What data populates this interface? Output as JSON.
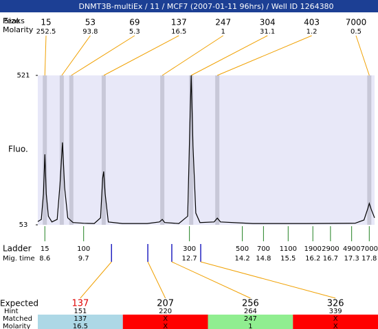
{
  "header": {
    "title": "DNMT3B-multiEx / 11 / MCF7 (2007-01-11 96hrs) / Well ID 1264380"
  },
  "chart_data": {
    "type": "line",
    "ylabel": "Fluo.",
    "color": "#000000",
    "band_color": "#c8c8d8",
    "background": "#e8e8f8",
    "x": [
      8.4,
      8.5,
      8.56,
      8.6,
      8.64,
      8.7,
      8.8,
      8.95,
      9.03,
      9.1,
      9.16,
      9.25,
      9.4,
      9.7,
      10.0,
      10.18,
      10.24,
      10.27,
      10.31,
      10.4,
      10.8,
      11.5,
      11.85,
      11.93,
      12.0,
      12.4,
      12.65,
      12.71,
      12.75,
      12.8,
      12.88,
      13.0,
      13.4,
      13.49,
      13.58,
      14.5,
      16.0,
      17.4,
      17.65,
      17.76,
      17.8,
      17.86,
      17.95
    ],
    "values": [
      63,
      70,
      150,
      274,
      150,
      80,
      62,
      70,
      180,
      311,
      170,
      75,
      60,
      58,
      57,
      75,
      200,
      220,
      150,
      62,
      57,
      57,
      62,
      70,
      60,
      57,
      80,
      350,
      521,
      300,
      90,
      60,
      62,
      74,
      62,
      57,
      57,
      58,
      68,
      105,
      120,
      100,
      75
    ],
    "xlim": [
      8.4,
      17.95
    ],
    "ylim": [
      53,
      521
    ],
    "yticks": [
      53,
      521
    ]
  },
  "peaks": {
    "labels": [
      "Peaks",
      "Size",
      "Molarity"
    ],
    "color": "#f0a000",
    "items": [
      {
        "size": 15,
        "molarity": 252.5,
        "time": 8.6
      },
      {
        "size": 53,
        "molarity": 93.8,
        "time": 9.08
      },
      {
        "size": 69,
        "molarity": 5.3,
        "time": 9.35
      },
      {
        "size": 137,
        "molarity": 16.5,
        "time": 10.27
      },
      {
        "size": 247,
        "molarity": 1,
        "time": 11.93
      },
      {
        "size": 304,
        "molarity": 31.1,
        "time": 12.75
      },
      {
        "size": 403,
        "molarity": 1.2,
        "time": 13.49
      },
      {
        "size": 7000,
        "molarity": 0.5,
        "time": 17.8
      }
    ]
  },
  "ladder": {
    "labels": [
      "Ladder",
      "Mig. time"
    ],
    "color": "#208020",
    "items": [
      {
        "size": 15,
        "time": 8.6
      },
      {
        "size": 100,
        "time": 9.7
      },
      {
        "size": 300,
        "time": 12.7
      },
      {
        "size": 500,
        "time": 14.2
      },
      {
        "size": 700,
        "time": 14.8
      },
      {
        "size": 1100,
        "time": 15.5
      },
      {
        "size": 1900,
        "time": 16.2
      },
      {
        "size": 2900,
        "time": 16.7
      },
      {
        "size": 4900,
        "time": 17.3
      },
      {
        "size": 7000,
        "time": 17.8
      }
    ]
  },
  "expected": {
    "labels": [
      "Expected",
      "Hint",
      "Matched",
      "Molarity"
    ],
    "tick_color": "#2020c0",
    "items": [
      {
        "expected": 137,
        "hint": 151,
        "matched": 137,
        "molarity": 16.5,
        "time": 10.49,
        "color": "#add8e6",
        "label_color": "#e00000"
      },
      {
        "expected": 207,
        "hint": 220,
        "matched": "X",
        "molarity": "X",
        "time": 11.52,
        "color": "#ff0000",
        "label_color": "#000000"
      },
      {
        "expected": 256,
        "hint": 264,
        "matched": 247,
        "molarity": 1,
        "time": 12.2,
        "color": "#90ee90",
        "label_color": "#000000"
      },
      {
        "expected": 326,
        "hint": 339,
        "matched": "X",
        "molarity": "X",
        "time": 13.02,
        "color": "#ff0000",
        "label_color": "#000000"
      }
    ]
  }
}
